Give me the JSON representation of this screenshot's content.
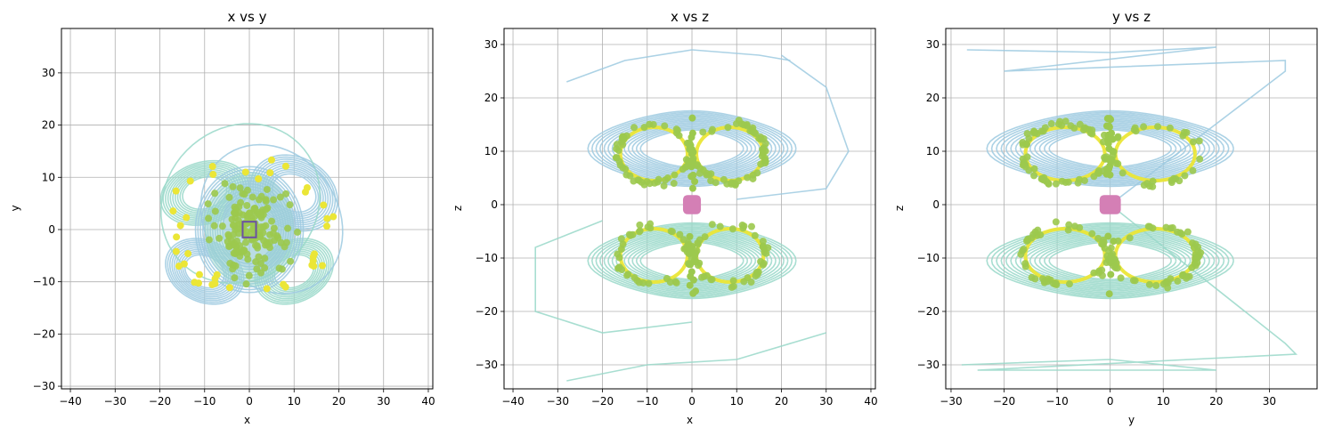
{
  "colors": {
    "blue": "#9ecae1",
    "green": "#99d8c9",
    "purple": "#6a51a3",
    "yellow": "#ebe636",
    "lime": "#9cc94e",
    "pink": "#d47fb5",
    "grid": "#b0b0b0"
  },
  "chart_data": [
    {
      "type": "line",
      "title": "x vs y",
      "xlabel": "x",
      "ylabel": "y",
      "xlim": [
        -42,
        41
      ],
      "ylim": [
        -30.5,
        38.5
      ],
      "xticks": [
        -40,
        -30,
        -20,
        -10,
        0,
        10,
        20,
        30,
        40
      ],
      "yticks": [
        -30,
        -20,
        -10,
        0,
        10,
        20,
        30
      ],
      "xtick_labels": [
        "−40",
        "−30",
        "−20",
        "−10",
        "0",
        "10",
        "20",
        "30",
        "40"
      ],
      "ytick_labels": [
        "−30",
        "−20",
        "−10",
        "0",
        "10",
        "20",
        "30"
      ],
      "grid": true
    },
    {
      "type": "line",
      "title": "x vs z",
      "xlabel": "x",
      "ylabel": "z",
      "xlim": [
        -42,
        41
      ],
      "ylim": [
        -34.5,
        33
      ],
      "xticks": [
        -40,
        -30,
        -20,
        -10,
        0,
        10,
        20,
        30,
        40
      ],
      "yticks": [
        -30,
        -20,
        -10,
        0,
        10,
        20,
        30
      ],
      "xtick_labels": [
        "−40",
        "−30",
        "−20",
        "−10",
        "0",
        "10",
        "20",
        "30",
        "40"
      ],
      "ytick_labels": [
        "−30",
        "−20",
        "−10",
        "0",
        "10",
        "20",
        "30"
      ],
      "grid": true
    },
    {
      "type": "line",
      "title": "y vs z",
      "xlabel": "y",
      "ylabel": "z",
      "xlim": [
        -31,
        39
      ],
      "ylim": [
        -34.5,
        33
      ],
      "xticks": [
        -30,
        -20,
        -10,
        0,
        10,
        20,
        30
      ],
      "yticks": [
        -30,
        -20,
        -10,
        0,
        10,
        20,
        30
      ],
      "xtick_labels": [
        "−30",
        "−20",
        "−10",
        "0",
        "10",
        "20",
        "30"
      ],
      "ytick_labels": [
        "−30",
        "−20",
        "−10",
        "0",
        "10",
        "20",
        "30"
      ],
      "grid": true
    }
  ]
}
